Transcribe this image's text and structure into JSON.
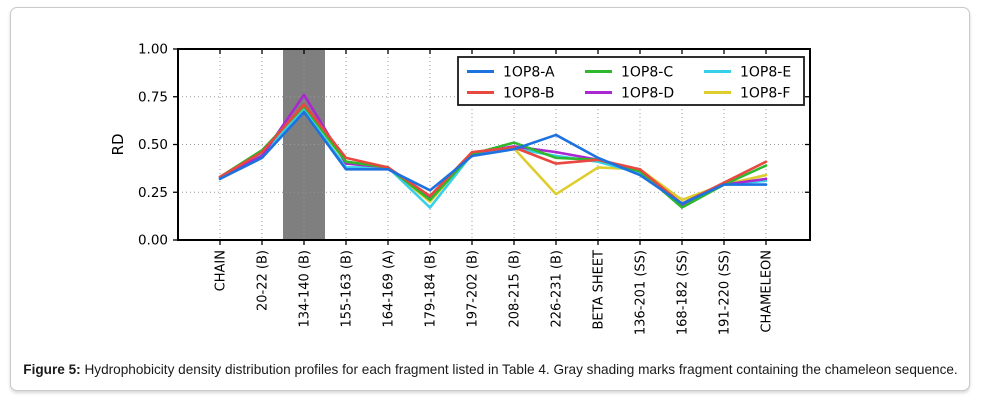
{
  "figure": {
    "caption_label": "Figure 5:",
    "caption_text": "Hydrophobicity density distribution profiles for each fragment listed in Table 4. Gray shading marks fragment containing the chameleon sequence."
  },
  "chart_data": {
    "type": "line",
    "title": "",
    "xlabel": "",
    "ylabel": "RD",
    "ylim": [
      0.0,
      1.0
    ],
    "yticks": [
      0.0,
      0.25,
      0.5,
      0.75,
      1.0
    ],
    "ytick_labels": [
      "0.00",
      "0.25",
      "0.50",
      "0.75",
      "1.00"
    ],
    "grid": "dotted gridlines at every category and at y = 0.25, 0.50, 0.75",
    "legend": {
      "position": "upper right, inside axes",
      "columns": 3,
      "entries": [
        "1OP8-A",
        "1OP8-B",
        "1OP8-C",
        "1OP8-D",
        "1OP8-E",
        "1OP8-F"
      ]
    },
    "shaded_region": {
      "category": "134-140 (B)",
      "category_index": 2,
      "color": "#7f7f7f",
      "meaning": "fragment containing the chameleon sequence"
    },
    "categories": [
      "CHAIN",
      "20-22 (B)",
      "134-140 (B)",
      "155-163 (B)",
      "164-169 (A)",
      "179-184 (B)",
      "197-202 (B)",
      "208-215 (B)",
      "226-231 (B)",
      "BETA SHEET",
      "136-201 (SS)",
      "168-182 (SS)",
      "191-220 (SS)",
      "CHAMELEON"
    ],
    "series": [
      {
        "name": "1OP8-A",
        "color": "#1d72e0",
        "values": [
          0.32,
          0.43,
          0.67,
          0.37,
          0.37,
          0.26,
          0.44,
          0.475,
          0.55,
          0.43,
          0.34,
          0.19,
          0.29,
          0.29
        ]
      },
      {
        "name": "1OP8-B",
        "color": "#e8483f",
        "values": [
          0.33,
          0.46,
          0.71,
          0.43,
          0.38,
          0.23,
          0.46,
          0.485,
          0.4,
          0.42,
          0.37,
          0.19,
          0.3,
          0.41
        ]
      },
      {
        "name": "1OP8-C",
        "color": "#2db82d",
        "values": [
          0.33,
          0.47,
          0.7,
          0.41,
          0.38,
          0.21,
          0.45,
          0.51,
          0.43,
          0.42,
          0.36,
          0.17,
          0.29,
          0.39
        ]
      },
      {
        "name": "1OP8-D",
        "color": "#a928cf",
        "values": [
          0.33,
          0.44,
          0.76,
          0.4,
          0.38,
          0.22,
          0.455,
          0.49,
          0.46,
          0.42,
          0.36,
          0.18,
          0.29,
          0.32
        ]
      },
      {
        "name": "1OP8-E",
        "color": "#38d0e8",
        "values": [
          0.32,
          0.45,
          0.68,
          0.38,
          0.38,
          0.17,
          0.45,
          0.48,
          0.44,
          0.41,
          0.35,
          0.19,
          0.29,
          0.31
        ]
      },
      {
        "name": "1OP8-F",
        "color": "#ddce2e",
        "values": [
          0.33,
          0.45,
          0.69,
          0.41,
          0.38,
          0.2,
          0.455,
          0.48,
          0.24,
          0.38,
          0.37,
          0.21,
          0.29,
          0.34
        ]
      }
    ]
  }
}
